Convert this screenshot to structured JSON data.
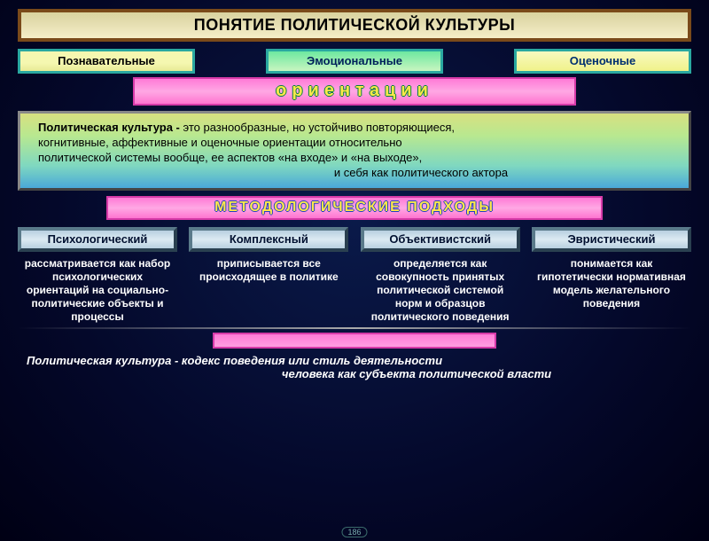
{
  "title": "ПОНЯТИЕ ПОЛИТИЧЕСКОЙ КУЛЬТУРЫ",
  "orientations": {
    "items": [
      "Познавательные",
      "Эмоциональные",
      "Оценочные"
    ],
    "band_label": "ориентации",
    "colors": {
      "band_bg": "#ff7ad6",
      "band_text": "#ffe84a",
      "pill_border": "#2aa8a0"
    }
  },
  "definition1": {
    "prefix": "Политическая культура -",
    "line1_rest": " это разнообразные, но устойчиво повторяющиеся,",
    "line2": "когнитивные, аффективные и оценочные ориентации относительно",
    "line3": "политической системы вообще, ее аспектов «на входе» и «на выходе»,",
    "line4": "и себя как политического актора"
  },
  "methods": {
    "band_label": "МЕТОДОЛОГИЧЕСКИЕ  ПОДХОДЫ",
    "headers": [
      "Психологический",
      "Комплексный",
      "Объективистский",
      "Эвристический"
    ],
    "descriptions": [
      "рассматривается как набор психологических ориентаций на социально-политические объекты и процессы",
      "приписывается все происходящее в политике",
      "определяется как совокупность принятых политической системой норм и образцов политического поведения",
      "понимается как гипотетически нормативная модель желательного поведения"
    ],
    "colors": {
      "header_bg": "#b8d0e0",
      "header_text": "#001030",
      "desc_text": "#ffffff"
    }
  },
  "definition2": {
    "prefix": "Политическая культура -",
    "line1_rest": " кодекс поведения или стиль деятельности",
    "line2": "человека как субъекта политической власти"
  },
  "slide_number": "186",
  "palette": {
    "frame_brown": "#7a4a1a",
    "pink": "#ff7ad6",
    "bg_dark": "#04082a"
  }
}
